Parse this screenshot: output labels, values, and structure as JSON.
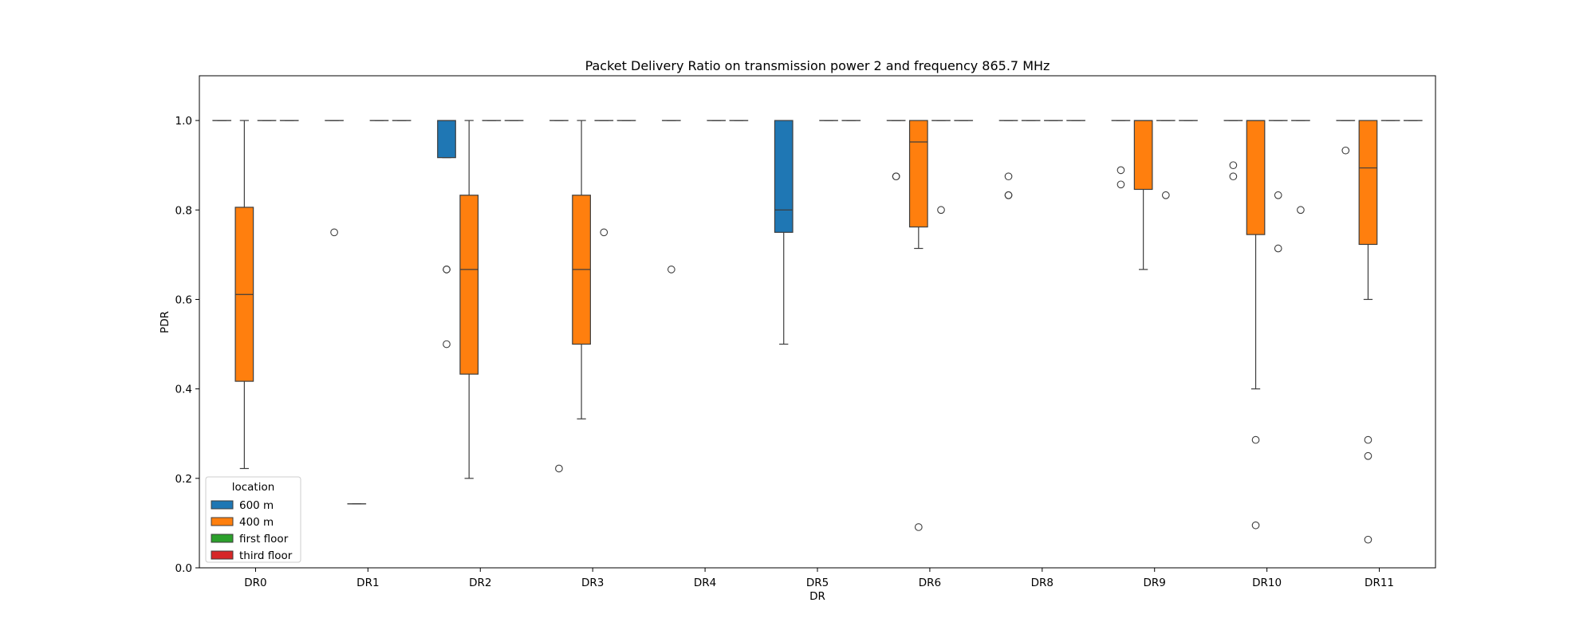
{
  "chart_data": {
    "type": "box",
    "title": "Packet Delivery Ratio on transmission power 2 and frequency 865.7 MHz",
    "xlabel": "DR",
    "ylabel": "PDR",
    "ylim": [
      0.0,
      1.1
    ],
    "yticks": [
      "0.0",
      "0.2",
      "0.4",
      "0.6",
      "0.8",
      "1.0"
    ],
    "categories": [
      "DR0",
      "DR1",
      "DR2",
      "DR3",
      "DR4",
      "DR5",
      "DR6",
      "DR8",
      "DR9",
      "DR10",
      "DR11"
    ],
    "grid": false,
    "legend": {
      "title": "location",
      "placement": "lower-left",
      "entries": [
        {
          "name": "600 m",
          "color": "#1f77b4"
        },
        {
          "name": "400 m",
          "color": "#ff7f0e"
        },
        {
          "name": "first floor",
          "color": "#2ca02c"
        },
        {
          "name": "third floor",
          "color": "#d62728"
        }
      ]
    },
    "boxes": [
      {
        "category": "DR0",
        "series": "600 m",
        "whislo": 1.0,
        "q1": 1.0,
        "med": 1.0,
        "q3": 1.0,
        "whishi": 1.0,
        "fliers": []
      },
      {
        "category": "DR0",
        "series": "400 m",
        "whislo": 0.222,
        "q1": 0.417,
        "med": 0.611,
        "q3": 0.806,
        "whishi": 1.0,
        "fliers": []
      },
      {
        "category": "DR0",
        "series": "first floor",
        "whislo": 1.0,
        "q1": 1.0,
        "med": 1.0,
        "q3": 1.0,
        "whishi": 1.0,
        "fliers": []
      },
      {
        "category": "DR0",
        "series": "third floor",
        "whislo": 1.0,
        "q1": 1.0,
        "med": 1.0,
        "q3": 1.0,
        "whishi": 1.0,
        "fliers": []
      },
      {
        "category": "DR1",
        "series": "600 m",
        "whislo": 1.0,
        "q1": 1.0,
        "med": 1.0,
        "q3": 1.0,
        "whishi": 1.0,
        "fliers": [
          0.75
        ]
      },
      {
        "category": "DR1",
        "series": "400 m",
        "whislo": 0.143,
        "q1": 0.143,
        "med": 0.143,
        "q3": 0.143,
        "whishi": 0.143,
        "fliers": []
      },
      {
        "category": "DR1",
        "series": "first floor",
        "whislo": 1.0,
        "q1": 1.0,
        "med": 1.0,
        "q3": 1.0,
        "whishi": 1.0,
        "fliers": []
      },
      {
        "category": "DR1",
        "series": "third floor",
        "whislo": 1.0,
        "q1": 1.0,
        "med": 1.0,
        "q3": 1.0,
        "whishi": 1.0,
        "fliers": []
      },
      {
        "category": "DR2",
        "series": "600 m",
        "whislo": 0.917,
        "q1": 0.917,
        "med": 1.0,
        "q3": 1.0,
        "whishi": 1.0,
        "fliers": [
          0.667,
          0.667,
          0.5
        ]
      },
      {
        "category": "DR2",
        "series": "400 m",
        "whislo": 0.2,
        "q1": 0.433,
        "med": 0.667,
        "q3": 0.833,
        "whishi": 1.0,
        "fliers": []
      },
      {
        "category": "DR2",
        "series": "first floor",
        "whislo": 1.0,
        "q1": 1.0,
        "med": 1.0,
        "q3": 1.0,
        "whishi": 1.0,
        "fliers": []
      },
      {
        "category": "DR2",
        "series": "third floor",
        "whislo": 1.0,
        "q1": 1.0,
        "med": 1.0,
        "q3": 1.0,
        "whishi": 1.0,
        "fliers": []
      },
      {
        "category": "DR3",
        "series": "600 m",
        "whislo": 1.0,
        "q1": 1.0,
        "med": 1.0,
        "q3": 1.0,
        "whishi": 1.0,
        "fliers": [
          0.222
        ]
      },
      {
        "category": "DR3",
        "series": "400 m",
        "whislo": 0.333,
        "q1": 0.5,
        "med": 0.667,
        "q3": 0.833,
        "whishi": 1.0,
        "fliers": []
      },
      {
        "category": "DR3",
        "series": "first floor",
        "whislo": 1.0,
        "q1": 1.0,
        "med": 1.0,
        "q3": 1.0,
        "whishi": 1.0,
        "fliers": [
          0.75
        ]
      },
      {
        "category": "DR3",
        "series": "third floor",
        "whislo": 1.0,
        "q1": 1.0,
        "med": 1.0,
        "q3": 1.0,
        "whishi": 1.0,
        "fliers": []
      },
      {
        "category": "DR4",
        "series": "600 m",
        "whislo": 1.0,
        "q1": 1.0,
        "med": 1.0,
        "q3": 1.0,
        "whishi": 1.0,
        "fliers": [
          0.667
        ]
      },
      {
        "category": "DR4",
        "series": "first floor",
        "whislo": 1.0,
        "q1": 1.0,
        "med": 1.0,
        "q3": 1.0,
        "whishi": 1.0,
        "fliers": []
      },
      {
        "category": "DR4",
        "series": "third floor",
        "whislo": 1.0,
        "q1": 1.0,
        "med": 1.0,
        "q3": 1.0,
        "whishi": 1.0,
        "fliers": []
      },
      {
        "category": "DR5",
        "series": "600 m",
        "whislo": 0.5,
        "q1": 0.75,
        "med": 0.8,
        "q3": 1.0,
        "whishi": 1.0,
        "fliers": []
      },
      {
        "category": "DR5",
        "series": "first floor",
        "whislo": 1.0,
        "q1": 1.0,
        "med": 1.0,
        "q3": 1.0,
        "whishi": 1.0,
        "fliers": []
      },
      {
        "category": "DR5",
        "series": "third floor",
        "whislo": 1.0,
        "q1": 1.0,
        "med": 1.0,
        "q3": 1.0,
        "whishi": 1.0,
        "fliers": []
      },
      {
        "category": "DR6",
        "series": "600 m",
        "whislo": 1.0,
        "q1": 1.0,
        "med": 1.0,
        "q3": 1.0,
        "whishi": 1.0,
        "fliers": [
          0.875,
          0.875
        ]
      },
      {
        "category": "DR6",
        "series": "400 m",
        "whislo": 0.714,
        "q1": 0.762,
        "med": 0.952,
        "q3": 1.0,
        "whishi": 1.0,
        "fliers": [
          0.091
        ]
      },
      {
        "category": "DR6",
        "series": "first floor",
        "whislo": 1.0,
        "q1": 1.0,
        "med": 1.0,
        "q3": 1.0,
        "whishi": 1.0,
        "fliers": [
          0.8
        ]
      },
      {
        "category": "DR6",
        "series": "third floor",
        "whislo": 1.0,
        "q1": 1.0,
        "med": 1.0,
        "q3": 1.0,
        "whishi": 1.0,
        "fliers": []
      },
      {
        "category": "DR8",
        "series": "600 m",
        "whislo": 1.0,
        "q1": 1.0,
        "med": 1.0,
        "q3": 1.0,
        "whishi": 1.0,
        "fliers": [
          0.875,
          0.833,
          0.833
        ]
      },
      {
        "category": "DR8",
        "series": "400 m",
        "whislo": 1.0,
        "q1": 1.0,
        "med": 1.0,
        "q3": 1.0,
        "whishi": 1.0,
        "fliers": []
      },
      {
        "category": "DR8",
        "series": "first floor",
        "whislo": 1.0,
        "q1": 1.0,
        "med": 1.0,
        "q3": 1.0,
        "whishi": 1.0,
        "fliers": []
      },
      {
        "category": "DR8",
        "series": "third floor",
        "whislo": 1.0,
        "q1": 1.0,
        "med": 1.0,
        "q3": 1.0,
        "whishi": 1.0,
        "fliers": []
      },
      {
        "category": "DR9",
        "series": "600 m",
        "whislo": 1.0,
        "q1": 1.0,
        "med": 1.0,
        "q3": 1.0,
        "whishi": 1.0,
        "fliers": [
          0.889,
          0.857
        ]
      },
      {
        "category": "DR9",
        "series": "400 m",
        "whislo": 0.667,
        "q1": 0.846,
        "med": 1.0,
        "q3": 1.0,
        "whishi": 1.0,
        "fliers": []
      },
      {
        "category": "DR9",
        "series": "first floor",
        "whislo": 1.0,
        "q1": 1.0,
        "med": 1.0,
        "q3": 1.0,
        "whishi": 1.0,
        "fliers": [
          0.833
        ]
      },
      {
        "category": "DR9",
        "series": "third floor",
        "whislo": 1.0,
        "q1": 1.0,
        "med": 1.0,
        "q3": 1.0,
        "whishi": 1.0,
        "fliers": []
      },
      {
        "category": "DR10",
        "series": "600 m",
        "whislo": 1.0,
        "q1": 1.0,
        "med": 1.0,
        "q3": 1.0,
        "whishi": 1.0,
        "fliers": [
          0.9,
          0.875
        ]
      },
      {
        "category": "DR10",
        "series": "400 m",
        "whislo": 0.4,
        "q1": 0.745,
        "med": 1.0,
        "q3": 1.0,
        "whishi": 1.0,
        "fliers": [
          0.286,
          0.095
        ]
      },
      {
        "category": "DR10",
        "series": "first floor",
        "whislo": 1.0,
        "q1": 1.0,
        "med": 1.0,
        "q3": 1.0,
        "whishi": 1.0,
        "fliers": [
          0.833,
          0.714
        ]
      },
      {
        "category": "DR10",
        "series": "third floor",
        "whislo": 1.0,
        "q1": 1.0,
        "med": 1.0,
        "q3": 1.0,
        "whishi": 1.0,
        "fliers": [
          0.8
        ]
      },
      {
        "category": "DR11",
        "series": "600 m",
        "whislo": 1.0,
        "q1": 1.0,
        "med": 1.0,
        "q3": 1.0,
        "whishi": 1.0,
        "fliers": [
          0.933
        ]
      },
      {
        "category": "DR11",
        "series": "400 m",
        "whislo": 0.6,
        "q1": 0.723,
        "med": 0.894,
        "q3": 1.0,
        "whishi": 1.0,
        "fliers": [
          0.286,
          0.25,
          0.063
        ]
      },
      {
        "category": "DR11",
        "series": "first floor",
        "whislo": 1.0,
        "q1": 1.0,
        "med": 1.0,
        "q3": 1.0,
        "whishi": 1.0,
        "fliers": []
      },
      {
        "category": "DR11",
        "series": "third floor",
        "whislo": 1.0,
        "q1": 1.0,
        "med": 1.0,
        "q3": 1.0,
        "whishi": 1.0,
        "fliers": []
      }
    ]
  }
}
